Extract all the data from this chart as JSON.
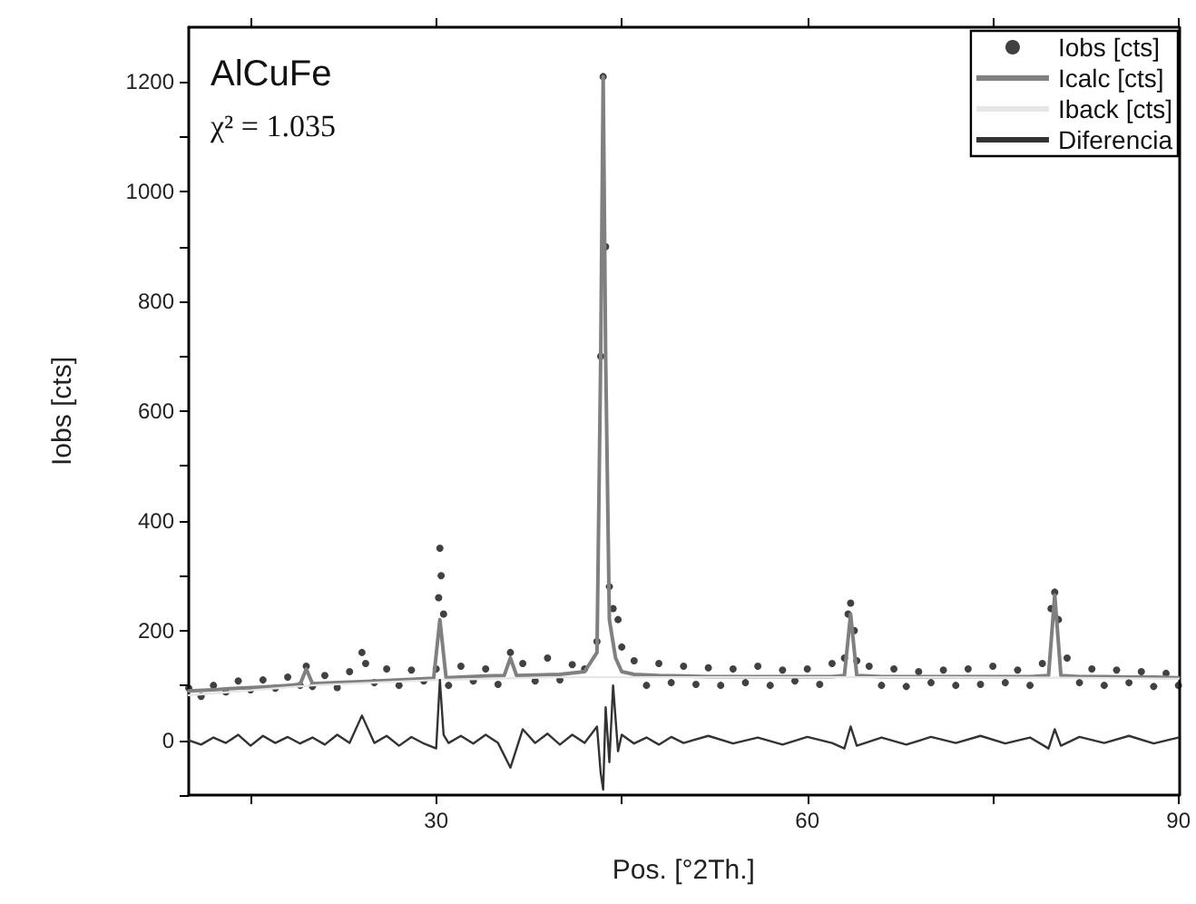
{
  "chart_data": {
    "type": "line",
    "xlabel": "Pos. [°2Th.]",
    "ylabel": "Iobs [cts]",
    "annotations": [
      "AlCuFe",
      "χ² = 1.035"
    ],
    "xlim": [
      10,
      90
    ],
    "xticks": [
      {
        "value": 15,
        "label": null
      },
      30,
      {
        "value": 45,
        "label": null
      },
      60,
      {
        "value": 75,
        "label": null
      },
      90
    ],
    "ylim": [
      -100,
      1300
    ],
    "yticks": [
      {
        "value": -100,
        "label": null
      },
      0,
      {
        "value": 100,
        "label": null
      },
      200,
      {
        "value": 300,
        "label": null
      },
      400,
      {
        "value": 500,
        "label": null
      },
      600,
      {
        "value": 700,
        "label": null
      },
      800,
      {
        "value": 900,
        "label": null
      },
      1000,
      {
        "value": 1100,
        "label": null
      },
      1200
    ],
    "grid": false,
    "legend": "top right",
    "line_style": "solid",
    "series": [
      {
        "name": "Iobs [cts]",
        "type": "scatter",
        "color": "#111111",
        "x": [
          10,
          11,
          12,
          13,
          14,
          15,
          16,
          17,
          18,
          19,
          19.5,
          20,
          21,
          22,
          23,
          24,
          24.3,
          25,
          26,
          27,
          28,
          29,
          30,
          30.2,
          30.3,
          30.4,
          30.6,
          31,
          32,
          33,
          34,
          35,
          36,
          37,
          38,
          39,
          40,
          41,
          42,
          43,
          43.3,
          43.5,
          43.7,
          44,
          44.3,
          44.7,
          45,
          46,
          47,
          48,
          49,
          50,
          51,
          52,
          53,
          54,
          55,
          56,
          57,
          58,
          59,
          60,
          61,
          62,
          63,
          63.3,
          63.5,
          63.8,
          64,
          65,
          66,
          67,
          68,
          69,
          70,
          71,
          72,
          73,
          74,
          75,
          76,
          77,
          78,
          79,
          79.7,
          80,
          80.3,
          81,
          82,
          83,
          84,
          85,
          86,
          87,
          88,
          89,
          90
        ],
        "values": [
          95,
          80,
          100,
          88,
          108,
          92,
          110,
          95,
          115,
          100,
          135,
          98,
          118,
          96,
          125,
          160,
          140,
          105,
          130,
          100,
          128,
          108,
          130,
          260,
          350,
          300,
          230,
          100,
          135,
          108,
          130,
          102,
          160,
          140,
          108,
          150,
          110,
          138,
          130,
          180,
          700,
          1210,
          900,
          280,
          240,
          220,
          170,
          145,
          100,
          140,
          105,
          135,
          102,
          132,
          100,
          130,
          105,
          135,
          100,
          128,
          108,
          130,
          102,
          140,
          150,
          230,
          250,
          200,
          145,
          135,
          100,
          130,
          98,
          125,
          105,
          128,
          100,
          130,
          102,
          135,
          105,
          128,
          100,
          140,
          240,
          270,
          220,
          150,
          105,
          130,
          100,
          128,
          105,
          125,
          98,
          122,
          100
        ]
      },
      {
        "name": "Icalc [cts]",
        "color": "#808080",
        "x": [
          10,
          12,
          14,
          16,
          18,
          19,
          19.5,
          20,
          22,
          24,
          26,
          28,
          29.8,
          30.3,
          30.8,
          32,
          34,
          35.5,
          36,
          36.5,
          38,
          40,
          42,
          43,
          43.3,
          43.5,
          43.7,
          44,
          44.5,
          45,
          46,
          48,
          50,
          52,
          54,
          56,
          58,
          60,
          62,
          63,
          63.5,
          64,
          66,
          68,
          70,
          72,
          74,
          76,
          78,
          79.5,
          80,
          80.5,
          82,
          84,
          86,
          88,
          90
        ],
        "values": [
          90,
          92,
          95,
          97,
          100,
          102,
          130,
          103,
          105,
          107,
          109,
          111,
          113,
          220,
          114,
          115,
          117,
          118,
          150,
          118,
          119,
          120,
          125,
          160,
          700,
          1210,
          700,
          220,
          150,
          125,
          120,
          118,
          117,
          116,
          116,
          116,
          116,
          116,
          116,
          118,
          230,
          118,
          116,
          116,
          116,
          116,
          116,
          116,
          116,
          118,
          265,
          118,
          116,
          116,
          115,
          115,
          114
        ]
      },
      {
        "name": "Iback [cts]",
        "color": "#e6e6e6",
        "x": [
          10,
          20,
          30,
          40,
          50,
          60,
          70,
          80,
          90
        ],
        "values": [
          82,
          100,
          110,
          115,
          115,
          115,
          115,
          114,
          112
        ]
      },
      {
        "name": "Diferencia",
        "color": "#333333",
        "x": [
          10,
          11,
          12,
          13,
          14,
          15,
          16,
          17,
          18,
          19,
          20,
          21,
          22,
          23,
          24,
          25,
          26,
          27,
          28,
          29,
          30,
          30.3,
          30.6,
          31,
          32,
          33,
          34,
          35,
          36,
          37,
          38,
          39,
          40,
          41,
          42,
          43,
          43.3,
          43.5,
          43.7,
          44,
          44.3,
          44.7,
          45,
          46,
          47,
          48,
          49,
          50,
          52,
          54,
          56,
          58,
          60,
          62,
          63,
          63.5,
          64,
          66,
          68,
          70,
          72,
          74,
          76,
          78,
          79.5,
          80,
          80.5,
          82,
          84,
          86,
          88,
          90
        ],
        "values": [
          0,
          -8,
          5,
          -5,
          10,
          -10,
          8,
          -5,
          6,
          -6,
          5,
          -8,
          10,
          -5,
          45,
          -5,
          8,
          -10,
          6,
          -6,
          -15,
          110,
          10,
          -5,
          8,
          -6,
          10,
          -5,
          -50,
          20,
          -5,
          12,
          -8,
          10,
          -5,
          25,
          -60,
          -90,
          60,
          -40,
          100,
          -20,
          10,
          -6,
          5,
          -8,
          6,
          -5,
          8,
          -6,
          5,
          -8,
          6,
          -5,
          -15,
          25,
          -10,
          5,
          -8,
          6,
          -5,
          8,
          -6,
          5,
          -15,
          20,
          -10,
          6,
          -5,
          8,
          -6,
          5
        ]
      }
    ]
  }
}
